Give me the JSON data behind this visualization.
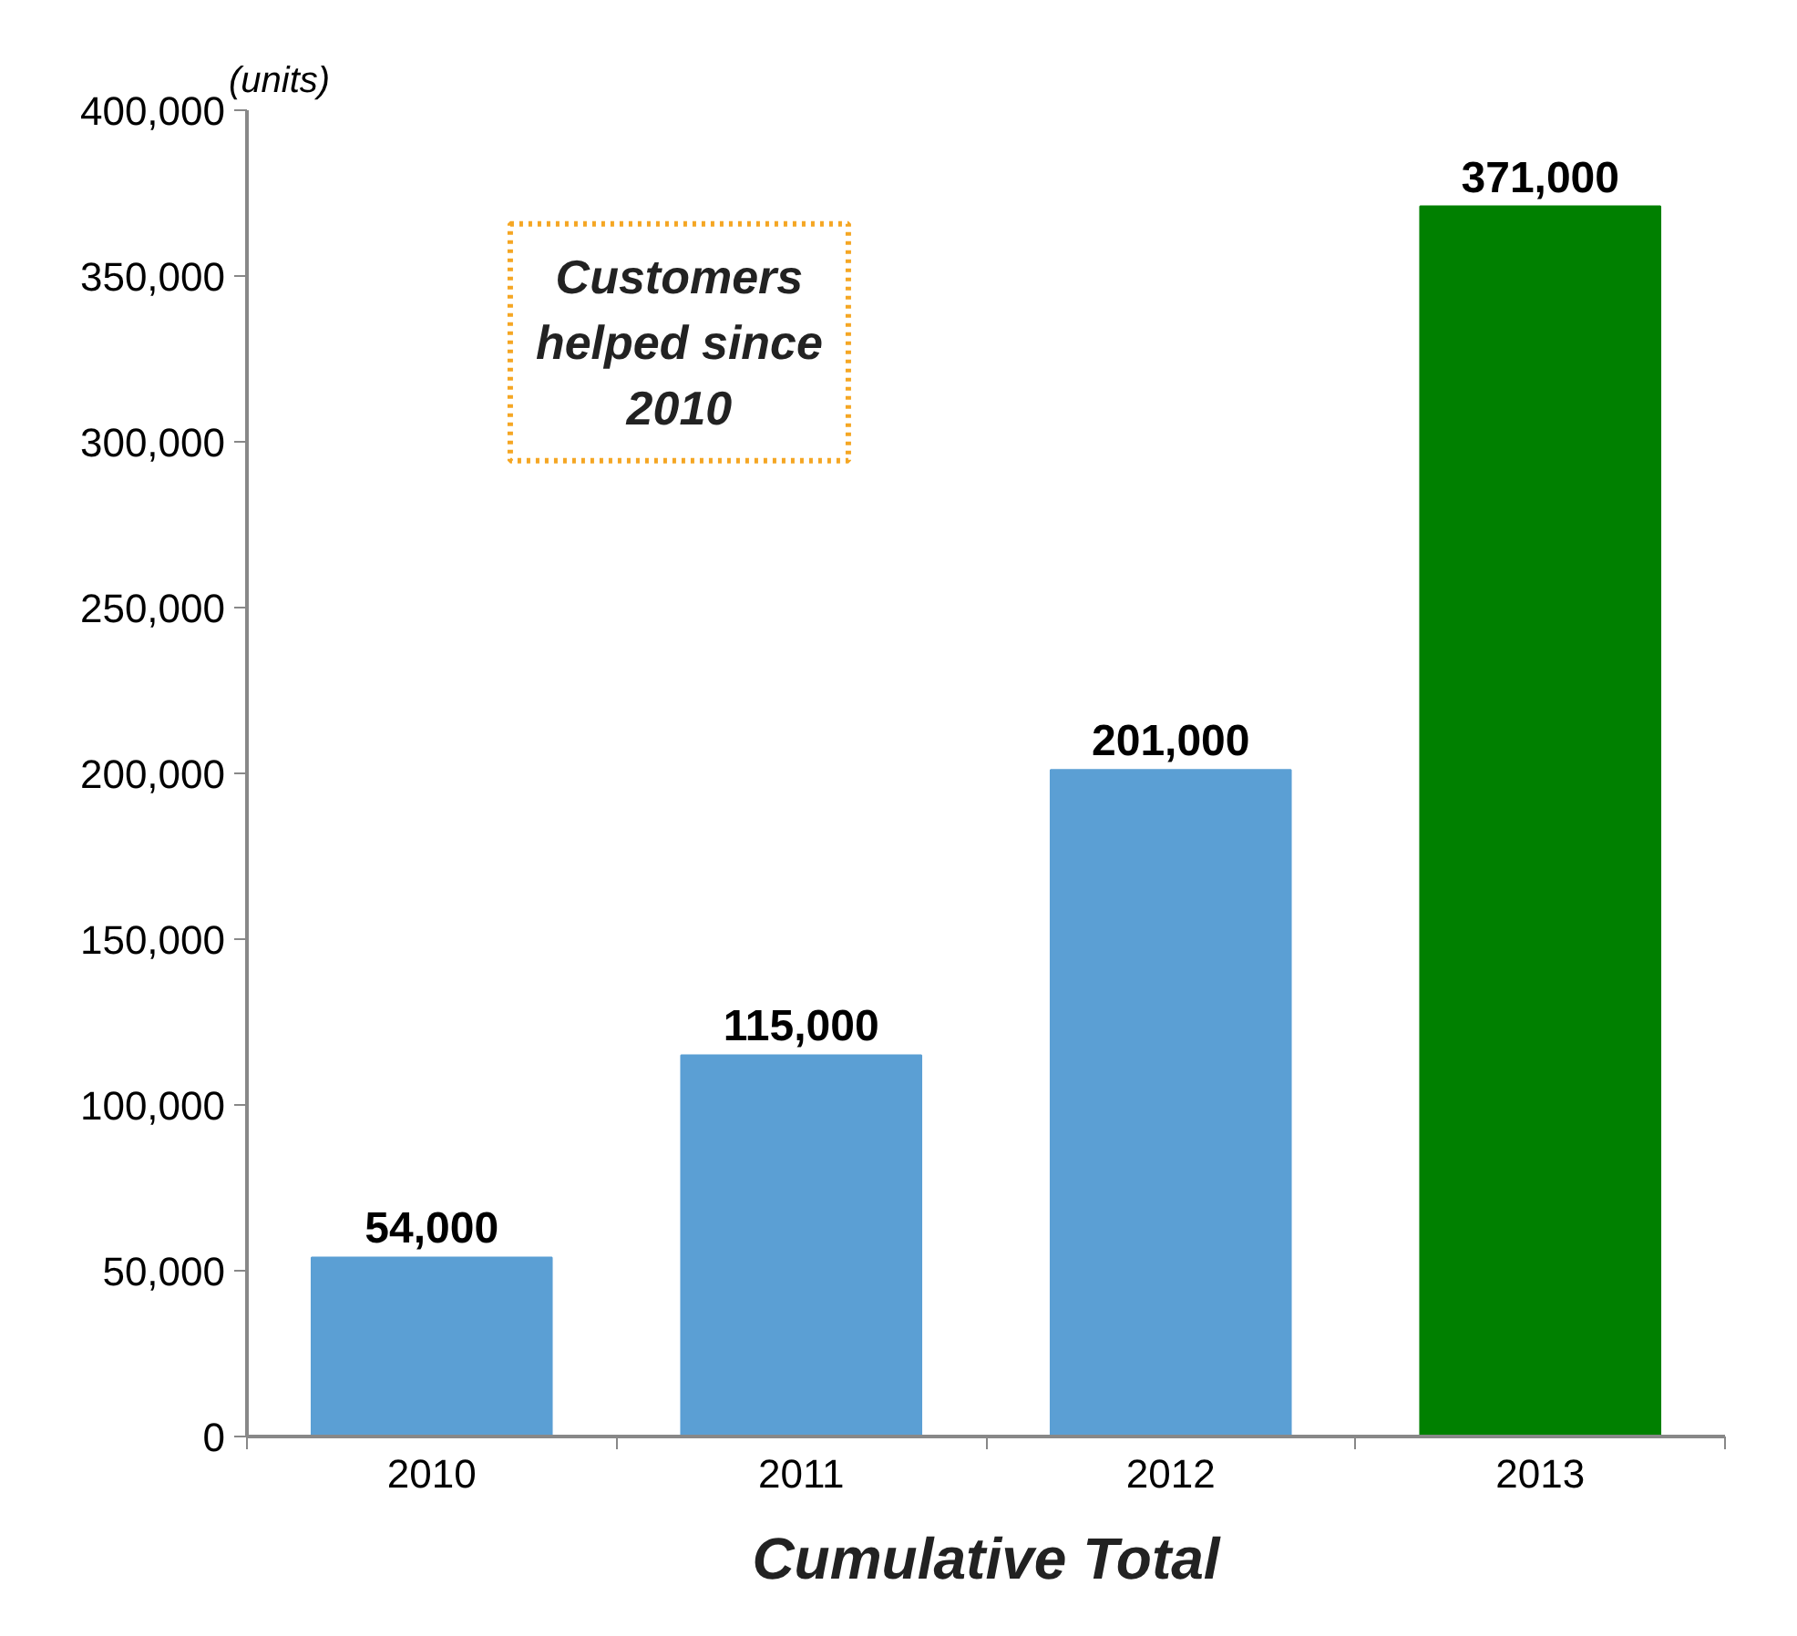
{
  "chart_data": {
    "type": "bar",
    "ylabel": "(units)",
    "xlabel": "Cumulative Total",
    "categories": [
      "2010",
      "2011",
      "2012",
      "2013"
    ],
    "values": [
      54000,
      115000,
      201000,
      371000
    ],
    "colors": [
      "#5b9fd4",
      "#5b9fd4",
      "#5b9fd4",
      "#008000"
    ],
    "value_labels": [
      "54,000",
      "115,000",
      "201,000",
      "371,000"
    ],
    "ylim": [
      0,
      400000
    ],
    "yticks": [
      0,
      {
        "value": 50000,
        "label": "50,000"
      },
      {
        "value": 100000,
        "label": "100,000"
      },
      {
        "value": 150000,
        "label": "150,000"
      },
      {
        "value": 200000,
        "label": "200,000"
      },
      {
        "value": 250000,
        "label": "250,000"
      },
      {
        "value": 300000,
        "label": "300,000"
      },
      {
        "value": 350000,
        "label": "350,000"
      },
      {
        "value": 400000,
        "label": "400,000"
      }
    ],
    "annotations": [
      "Customers helped since 2010"
    ],
    "grid": false
  }
}
